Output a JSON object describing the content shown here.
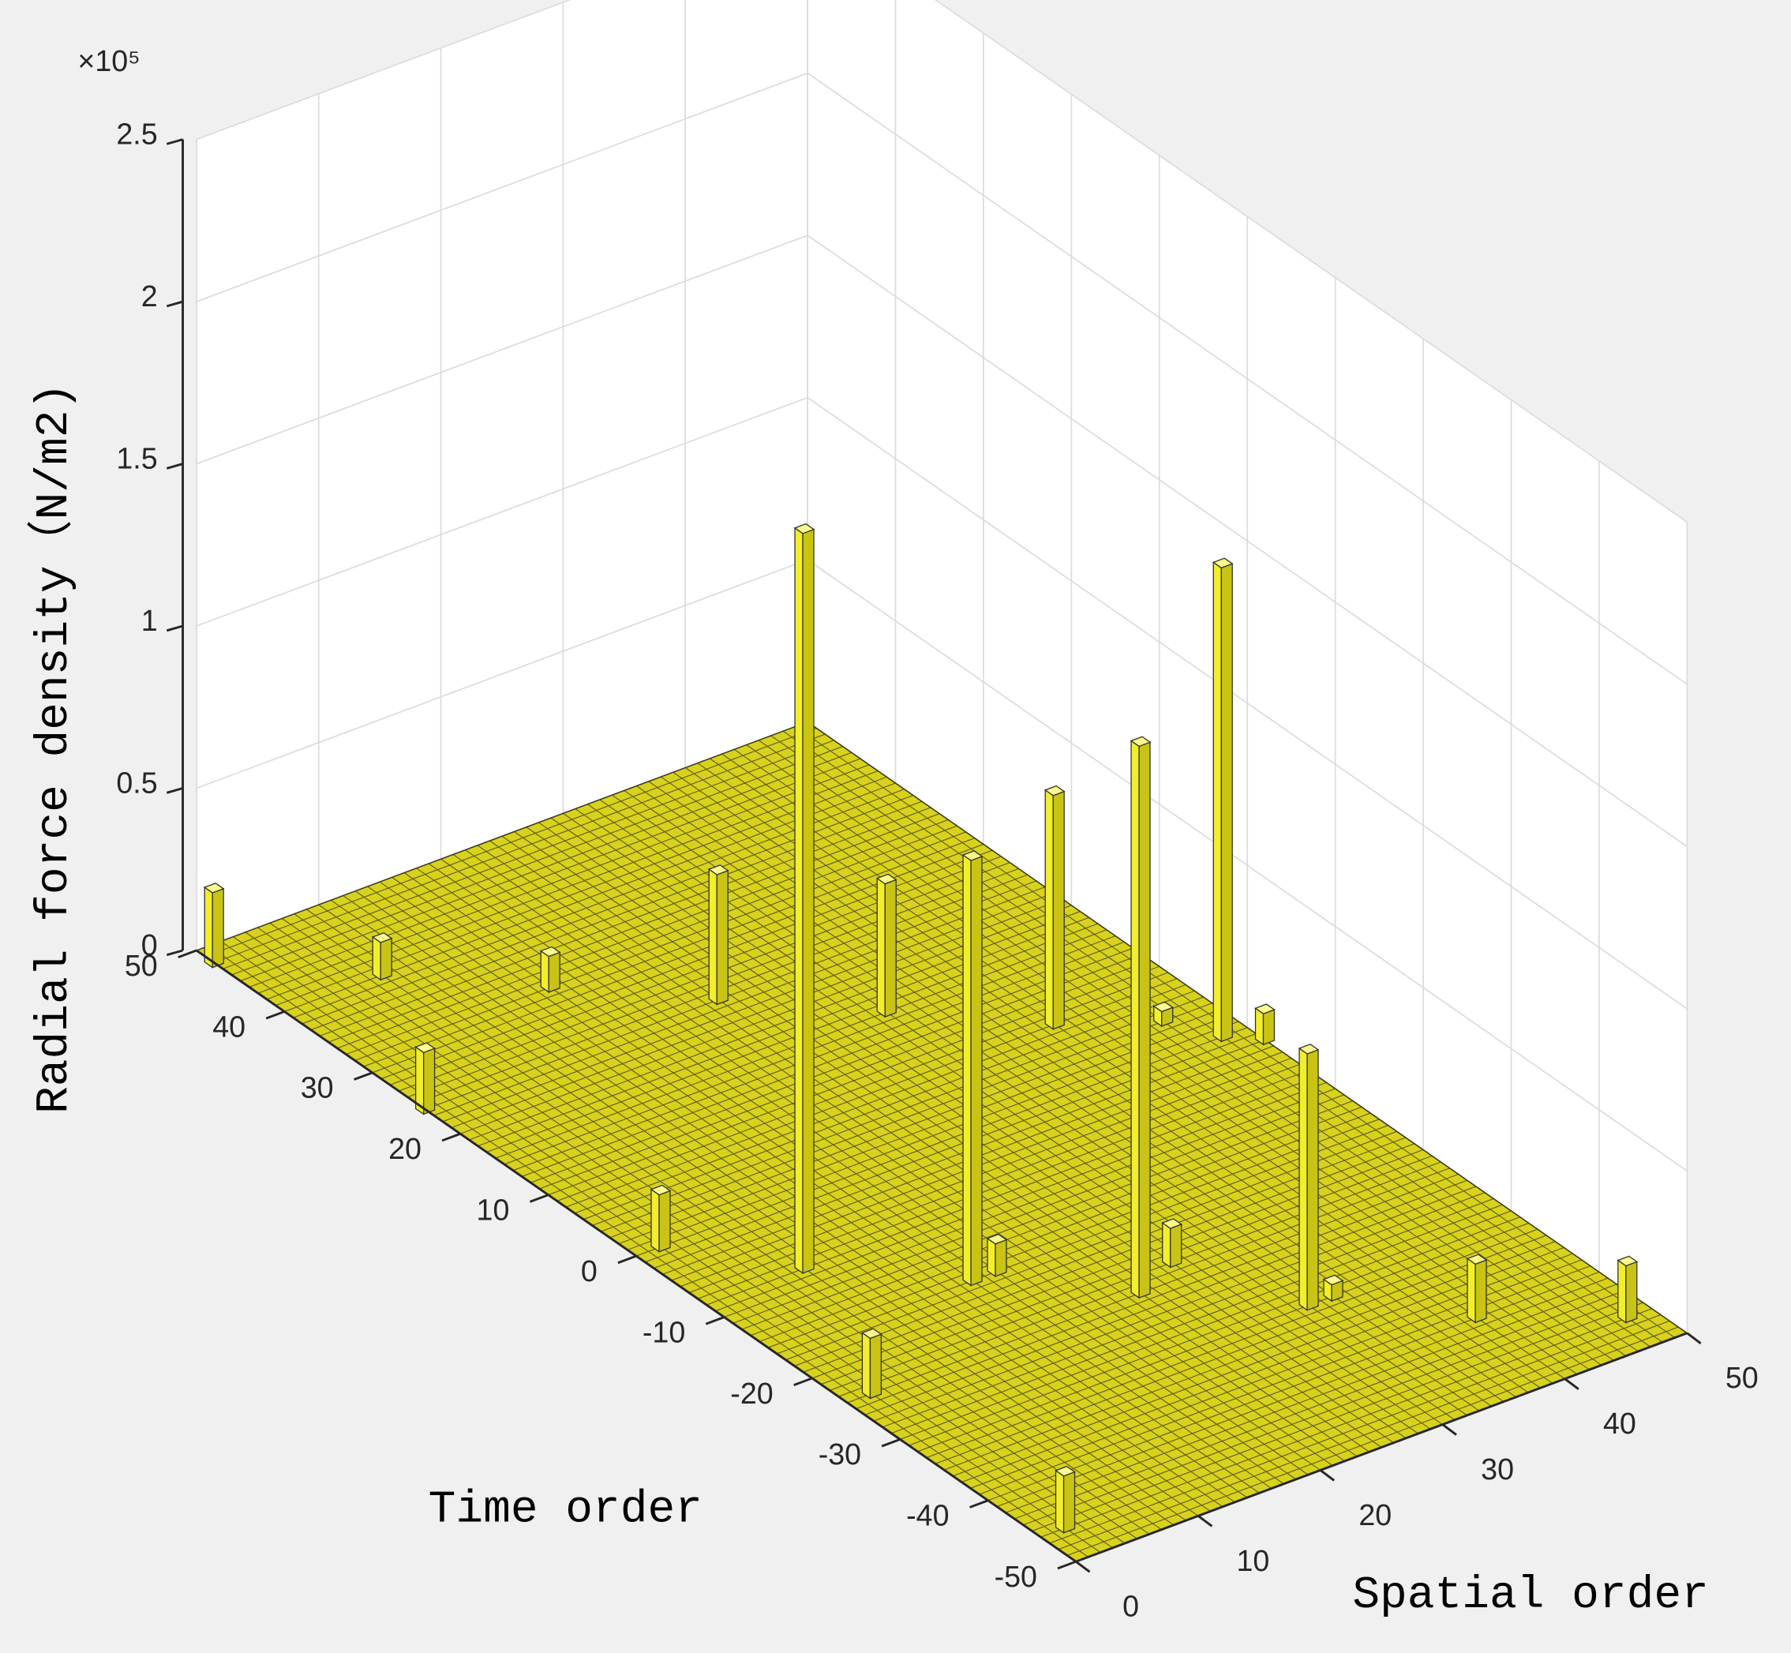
{
  "chart_data": {
    "type": "bar3d",
    "xlabel": "Time order",
    "ylabel": "Spatial order",
    "zlabel": "Radial force density（N/m2)",
    "z_multiplier": "×10⁵",
    "x": [
      48,
      40,
      32,
      24,
      -8,
      16,
      -16,
      8,
      -24,
      0,
      -32,
      24,
      0,
      -24,
      -46,
      -40,
      -46,
      -2,
      4,
      -16,
      -22,
      -32
    ],
    "y": [
      0,
      8,
      16,
      24,
      8,
      32,
      16,
      40,
      24,
      48,
      32,
      0,
      2,
      2,
      2,
      40,
      48,
      50,
      46,
      18,
      28,
      34
    ],
    "values": [
      23000,
      11500,
      11000,
      40000,
      228000,
      41000,
      131000,
      72000,
      170000,
      146000,
      79000,
      19000,
      17500,
      18500,
      17500,
      18000,
      17500,
      9500,
      4500,
      10000,
      12000,
      5000
    ],
    "color": "#f2ee2a",
    "xlim": [
      -50,
      50
    ],
    "xticks": [
      -50,
      -40,
      -30,
      -20,
      -10,
      0,
      10,
      20,
      30,
      40,
      50
    ],
    "ylim": [
      0,
      50
    ],
    "yticks": [
      0,
      10,
      20,
      30,
      40,
      50
    ],
    "zlim": [
      0,
      250000
    ],
    "zticks": [
      {
        "value": 0,
        "label": "0"
      },
      {
        "value": 50000,
        "label": "0.5"
      },
      {
        "value": 100000,
        "label": "1"
      },
      {
        "value": 150000,
        "label": "1.5"
      },
      {
        "value": 200000,
        "label": "2"
      },
      {
        "value": 250000,
        "label": "2.5"
      }
    ],
    "grid": true
  }
}
